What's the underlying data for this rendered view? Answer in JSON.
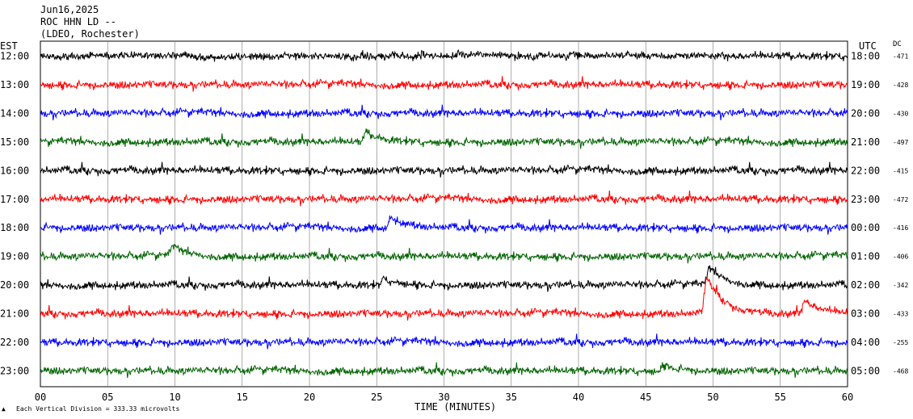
{
  "header": {
    "date": "Jun16,2025",
    "station": "ROC HHN LD --",
    "network": "(LDEO, Rochester)"
  },
  "labels": {
    "left_zone": "EST",
    "right_zone": "UTC",
    "dc": "DC",
    "xlabel": "TIME (MINUTES)",
    "footnote": "Each Vertical Division =  333.33 microvolts"
  },
  "chart_data": {
    "type": "line",
    "title": "",
    "xlabel": "TIME (MINUTES)",
    "ylabel": "",
    "xlim": [
      0,
      60
    ],
    "x_ticks": [
      "00",
      "05",
      "10",
      "15",
      "20",
      "25",
      "30",
      "35",
      "40",
      "45",
      "50",
      "55",
      "60"
    ],
    "grid": "vertical lines every 5 minutes",
    "trace_colors": [
      "#000000",
      "#ff0000",
      "#0000ff",
      "#006400"
    ],
    "traces": [
      {
        "est": "12:00",
        "utc": "18:00",
        "dc": "-471"
      },
      {
        "est": "13:00",
        "utc": "19:00",
        "dc": "-428"
      },
      {
        "est": "14:00",
        "utc": "20:00",
        "dc": "-430"
      },
      {
        "est": "15:00",
        "utc": "21:00",
        "dc": "-497"
      },
      {
        "est": "16:00",
        "utc": "22:00",
        "dc": "-415"
      },
      {
        "est": "17:00",
        "utc": "23:00",
        "dc": "-472"
      },
      {
        "est": "18:00",
        "utc": "00:00",
        "dc": "-416"
      },
      {
        "est": "19:00",
        "utc": "01:00",
        "dc": "-406"
      },
      {
        "est": "20:00",
        "utc": "02:00",
        "dc": "-342"
      },
      {
        "est": "21:00",
        "utc": "03:00",
        "dc": "-433"
      },
      {
        "est": "22:00",
        "utc": "04:00",
        "dc": "-255"
      },
      {
        "est": "23:00",
        "utc": "05:00",
        "dc": "-468"
      }
    ],
    "events": [
      {
        "trace": 3,
        "minute": 24.2,
        "amplitude": 12
      },
      {
        "trace": 6,
        "minute": 26.0,
        "amplitude": 14
      },
      {
        "trace": 7,
        "minute": 9.8,
        "amplitude": 12
      },
      {
        "trace": 8,
        "minute": 25.5,
        "amplitude": 8
      },
      {
        "trace": 8,
        "minute": 49.7,
        "amplitude": 22
      },
      {
        "trace": 9,
        "minute": 49.5,
        "amplitude": 48
      },
      {
        "trace": 9,
        "minute": 56.8,
        "amplitude": 16
      },
      {
        "trace": 11,
        "minute": 46.3,
        "amplitude": 8
      }
    ]
  }
}
